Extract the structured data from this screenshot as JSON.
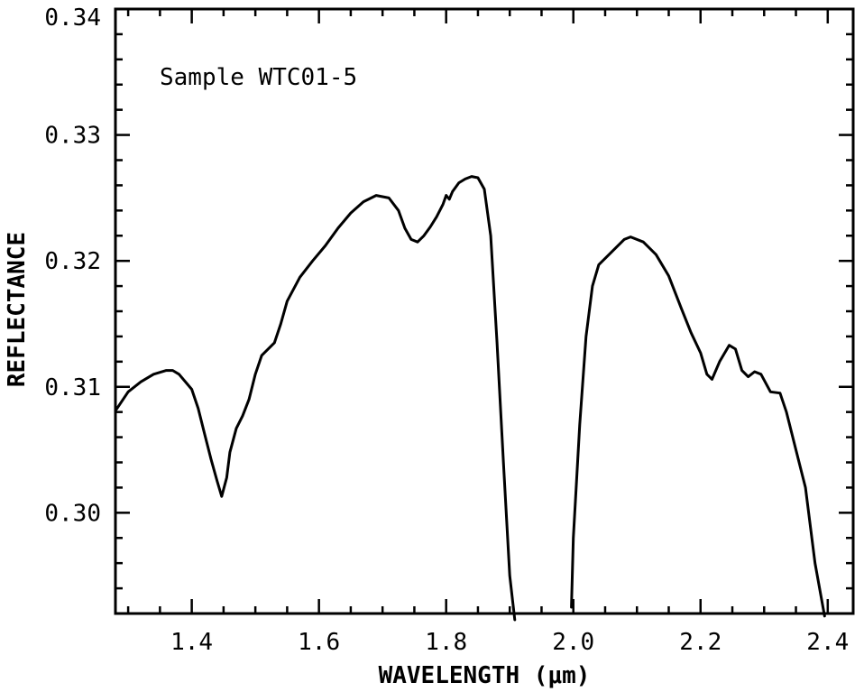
{
  "chart_data": {
    "type": "line",
    "title": "",
    "annotation": "Sample WTC01-5",
    "xlabel": "WAVELENGTH (μm)",
    "ylabel": "REFLECTANCE",
    "xlim": [
      1.28,
      2.44
    ],
    "ylim": [
      0.292,
      0.34
    ],
    "x_ticks": [
      1.4,
      1.6,
      1.8,
      2.0,
      2.2,
      2.4
    ],
    "x_tick_labels": [
      "1.4",
      "1.6",
      "1.8",
      "2.0",
      "2.2",
      "2.4"
    ],
    "x_minor_step": 0.05,
    "y_ticks": [
      0.3,
      0.31,
      0.32,
      0.33,
      0.34
    ],
    "y_tick_labels": [
      "0.30",
      "0.31",
      "0.32",
      "0.33",
      "0.34"
    ],
    "y_minor_step": 0.002,
    "grid": false,
    "series": [
      {
        "segments": [
          [
            [
              1.28,
              0.3081
            ],
            [
              1.3,
              0.3096
            ],
            [
              1.32,
              0.3104
            ],
            [
              1.34,
              0.311
            ],
            [
              1.36,
              0.3113
            ],
            [
              1.37,
              0.3113
            ],
            [
              1.38,
              0.311
            ],
            [
              1.4,
              0.3098
            ],
            [
              1.41,
              0.3083
            ],
            [
              1.42,
              0.3063
            ],
            [
              1.43,
              0.3043
            ],
            [
              1.44,
              0.3025
            ],
            [
              1.447,
              0.3013
            ],
            [
              1.455,
              0.3028
            ],
            [
              1.46,
              0.3048
            ],
            [
              1.47,
              0.3067
            ],
            [
              1.48,
              0.3077
            ],
            [
              1.49,
              0.309
            ],
            [
              1.5,
              0.311
            ],
            [
              1.51,
              0.3125
            ],
            [
              1.53,
              0.3135
            ],
            [
              1.54,
              0.315
            ],
            [
              1.55,
              0.3168
            ],
            [
              1.57,
              0.3187
            ],
            [
              1.59,
              0.32
            ],
            [
              1.61,
              0.3212
            ],
            [
              1.63,
              0.3226
            ],
            [
              1.65,
              0.3238
            ],
            [
              1.67,
              0.3247
            ],
            [
              1.69,
              0.3252
            ],
            [
              1.71,
              0.325
            ],
            [
              1.725,
              0.324
            ],
            [
              1.735,
              0.3226
            ],
            [
              1.745,
              0.3217
            ],
            [
              1.755,
              0.3215
            ],
            [
              1.765,
              0.322
            ],
            [
              1.775,
              0.3227
            ],
            [
              1.785,
              0.3235
            ],
            [
              1.795,
              0.3245
            ],
            [
              1.8,
              0.3252
            ],
            [
              1.805,
              0.3249
            ],
            [
              1.81,
              0.3255
            ],
            [
              1.82,
              0.3262
            ],
            [
              1.83,
              0.3265
            ],
            [
              1.84,
              0.3267
            ],
            [
              1.85,
              0.3266
            ],
            [
              1.86,
              0.3257
            ],
            [
              1.87,
              0.322
            ],
            [
              1.88,
              0.3135
            ],
            [
              1.89,
              0.304
            ],
            [
              1.9,
              0.295
            ],
            [
              1.908,
              0.2915
            ]
          ],
          [
            [
              1.997,
              0.2925
            ],
            [
              2.0,
              0.298
            ],
            [
              2.01,
              0.307
            ],
            [
              2.02,
              0.314
            ],
            [
              2.03,
              0.318
            ],
            [
              2.04,
              0.3197
            ],
            [
              2.06,
              0.3207
            ],
            [
              2.08,
              0.3217
            ],
            [
              2.09,
              0.3219
            ],
            [
              2.11,
              0.3215
            ],
            [
              2.13,
              0.3205
            ],
            [
              2.15,
              0.3188
            ],
            [
              2.17,
              0.3162
            ],
            [
              2.185,
              0.3143
            ],
            [
              2.2,
              0.3127
            ],
            [
              2.21,
              0.311
            ],
            [
              2.218,
              0.3106
            ],
            [
              2.23,
              0.312
            ],
            [
              2.245,
              0.3133
            ],
            [
              2.255,
              0.313
            ],
            [
              2.265,
              0.3113
            ],
            [
              2.275,
              0.3108
            ],
            [
              2.285,
              0.3112
            ],
            [
              2.295,
              0.311
            ],
            [
              2.31,
              0.3096
            ],
            [
              2.325,
              0.3095
            ],
            [
              2.335,
              0.308
            ],
            [
              2.35,
              0.305
            ],
            [
              2.365,
              0.302
            ],
            [
              2.38,
              0.296
            ],
            [
              2.395,
              0.2918
            ]
          ]
        ]
      }
    ]
  }
}
